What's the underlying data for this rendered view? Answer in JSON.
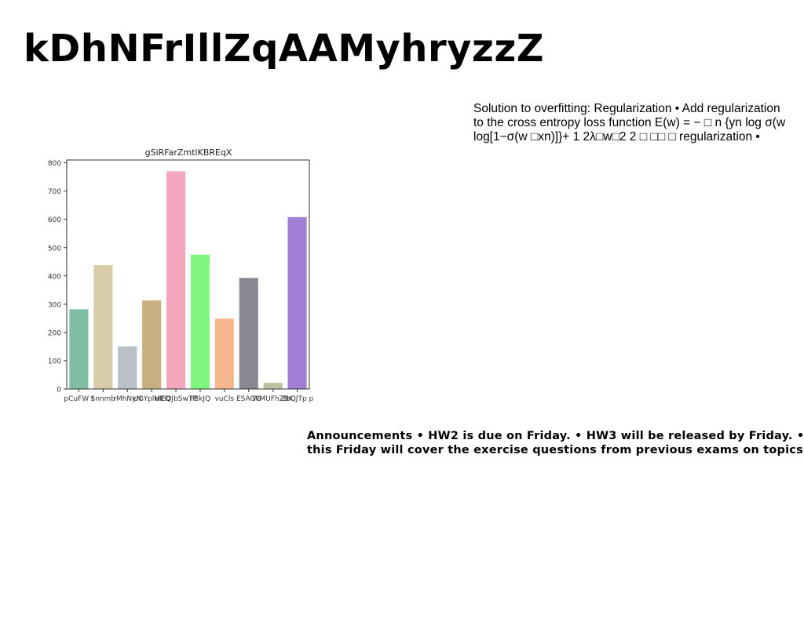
{
  "slide": {
    "title": "kDhNFrIllZqAAMyhryzzZ",
    "overfitting_lines": [
      "Solution to overfitting: Regularization • Add regularization",
      "to the cross entropy loss function E(w) = − □ n {yn log σ(w",
      "log[1−σ(w □xn)]}+ 1 2λ□w□2 2 □ □□ □ regularization •"
    ],
    "announcement_lines": [
      "Announcements • HW2 is due on Friday. • HW3 will be released by Friday. •",
      "this Friday will cover the exercise questions from previous exams on topics"
    ]
  },
  "chart_data": {
    "type": "bar",
    "title": "gSiRFarZmtlKBREqX",
    "xlabel": "",
    "ylabel": "",
    "categories": [
      "pCuFW t",
      "Snnmb",
      "rMhNyN",
      "UGYplMEQ",
      "uIEQJbSwTP",
      "FBkJQ",
      "vuCls",
      "ESAGG",
      "WMUFhZBK",
      "ZbQJTp p"
    ],
    "values": [
      282,
      438,
      151,
      313,
      770,
      475,
      249,
      393,
      22,
      608
    ],
    "colors": [
      "#7fbfa4",
      "#d8cba8",
      "#bbc0c6",
      "#c8af80",
      "#f4a6be",
      "#80f67f",
      "#f6b78f",
      "#888892",
      "#bdc2a0",
      "#a07fd4"
    ],
    "ylim": [
      0,
      810
    ],
    "yticks": [
      0,
      100,
      200,
      300,
      400,
      500,
      600,
      700,
      800
    ],
    "grid": false
  }
}
